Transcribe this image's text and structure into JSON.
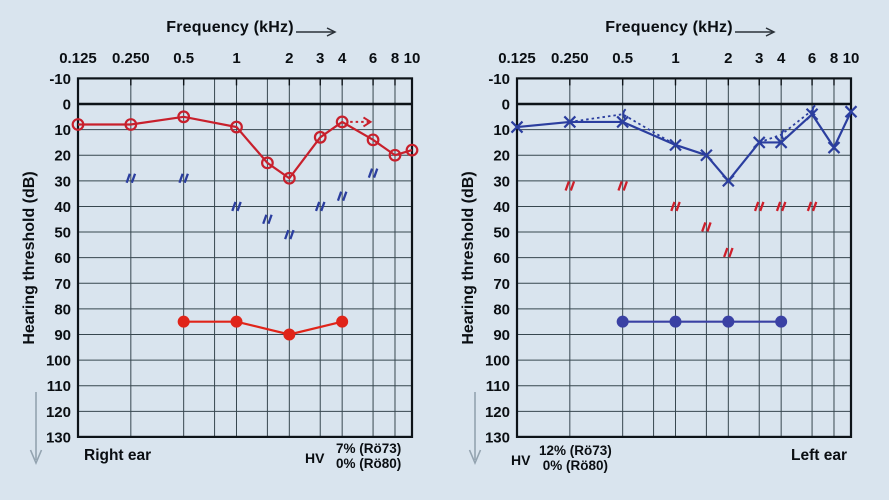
{
  "figure": {
    "background": "#d9e4ee",
    "grid_color": "#37474f",
    "axis_color": "#0d1318",
    "text_color": "#0a0e12"
  },
  "chart_data": [
    {
      "type": "line",
      "panel": "right-ear-audiogram",
      "x_label": "Frequency (kHz)",
      "y_label": "Hearing threshold (dB)",
      "ear_label": "Right ear",
      "hv_label": "HV",
      "hv_lines": [
        "7% (Rö73)",
        "0% (Rö80)"
      ],
      "axes": {
        "x_scale": "log2",
        "x_range_khz": [
          0.125,
          10
        ],
        "x_ticks": [
          "0.125",
          "0.250",
          "0.5",
          "1",
          "2",
          "3",
          "4",
          "6",
          "8",
          "10"
        ],
        "x_tick_freqs": [
          0.125,
          0.25,
          0.5,
          1,
          2,
          3,
          4,
          6,
          8,
          10
        ],
        "grid_freqs": [
          0.25,
          0.5,
          0.75,
          1,
          1.5,
          2,
          3,
          4,
          6,
          8
        ],
        "y_range_db": [
          -10,
          130
        ],
        "y_ticks": [
          -10,
          0,
          10,
          20,
          30,
          40,
          50,
          60,
          70,
          80,
          90,
          100,
          110,
          120,
          130
        ],
        "grid": true,
        "legend": false
      },
      "series": [
        {
          "name": "air-conduction",
          "marker": "circle",
          "connect": true,
          "color": "#c8202c",
          "freq": [
            0.125,
            0.25,
            0.5,
            1,
            1.5,
            2,
            3,
            4,
            6,
            8,
            10
          ],
          "db": [
            8,
            8,
            5,
            9,
            23,
            29,
            13,
            7,
            14,
            20,
            18
          ]
        },
        {
          "name": "bone-conduction",
          "marker": "zigzag",
          "connect": false,
          "color": "#2b3e9f",
          "freq": [
            0.25,
            0.5,
            1,
            1.5,
            2,
            3,
            4,
            6
          ],
          "db": [
            29,
            29,
            40,
            45,
            51,
            40,
            36,
            27
          ]
        },
        {
          "name": "loudness-discomfort-level",
          "marker": "dot",
          "connect": true,
          "color": "#e02419",
          "freq": [
            0.5,
            1,
            2,
            4
          ],
          "db": [
            85,
            85,
            90,
            85
          ]
        }
      ],
      "no_response_arrow": {
        "from_freq": 4,
        "to_freq": 5.8,
        "db": 7,
        "color": "#c8202c",
        "style": "dotted",
        "direction": "right"
      }
    },
    {
      "type": "line",
      "panel": "left-ear-audiogram",
      "x_label": "Frequency (kHz)",
      "y_label": "Hearing threshold (dB)",
      "ear_label": "Left ear",
      "hv_label": "HV",
      "hv_lines": [
        "12% (Rö73)",
        "0% (Rö80)"
      ],
      "axes": {
        "x_scale": "log2",
        "x_range_khz": [
          0.125,
          10
        ],
        "x_ticks": [
          "0.125",
          "0.250",
          "0.5",
          "1",
          "2",
          "3",
          "4",
          "6",
          "8",
          "10"
        ],
        "x_tick_freqs": [
          0.125,
          0.25,
          0.5,
          1,
          2,
          3,
          4,
          6,
          8,
          10
        ],
        "grid_freqs": [
          0.25,
          0.5,
          0.75,
          1,
          1.5,
          2,
          3,
          4,
          6,
          8
        ],
        "y_range_db": [
          -10,
          130
        ],
        "y_ticks": [
          -10,
          0,
          10,
          20,
          30,
          40,
          50,
          60,
          70,
          80,
          90,
          100,
          110,
          120,
          130
        ],
        "grid": true,
        "legend": false
      },
      "series": [
        {
          "name": "air-conduction",
          "marker": "x",
          "connect": true,
          "color": "#2b3e9f",
          "freq": [
            0.125,
            0.25,
            0.5,
            1,
            1.5,
            2,
            3,
            4,
            6,
            8,
            10
          ],
          "db": [
            9,
            7,
            7,
            16,
            20,
            30,
            15,
            15,
            4,
            17,
            3
          ]
        },
        {
          "name": "bone-conduction",
          "marker": "zigzag",
          "connect": false,
          "color": "#cf1f2b",
          "freq": [
            0.25,
            0.5,
            1,
            1.5,
            2,
            3,
            4,
            6
          ],
          "db": [
            32,
            32,
            40,
            48,
            58,
            40,
            40,
            40
          ]
        },
        {
          "name": "loudness-discomfort-level",
          "marker": "dot",
          "connect": true,
          "color": "#3a41a4",
          "freq": [
            0.5,
            1,
            2,
            4
          ],
          "db": [
            85,
            85,
            85,
            85
          ]
        }
      ],
      "dotted_segments": [
        {
          "color": "#2b3e9f",
          "points": [
            [
              0.25,
              7
            ],
            [
              0.5,
              4
            ],
            [
              1,
              16
            ]
          ]
        },
        {
          "color": "#2b3e9f",
          "points": [
            [
              3,
              15
            ],
            [
              4,
              12
            ],
            [
              6,
              2.5
            ]
          ]
        }
      ],
      "dotted_markers": [
        {
          "freq": 0.5,
          "db": 4,
          "color": "#2b3e9f"
        },
        {
          "freq": 4,
          "db": 12,
          "color": "#2b3e9f"
        },
        {
          "freq": 6,
          "db": 2.5,
          "color": "#2b3e9f"
        }
      ]
    }
  ]
}
